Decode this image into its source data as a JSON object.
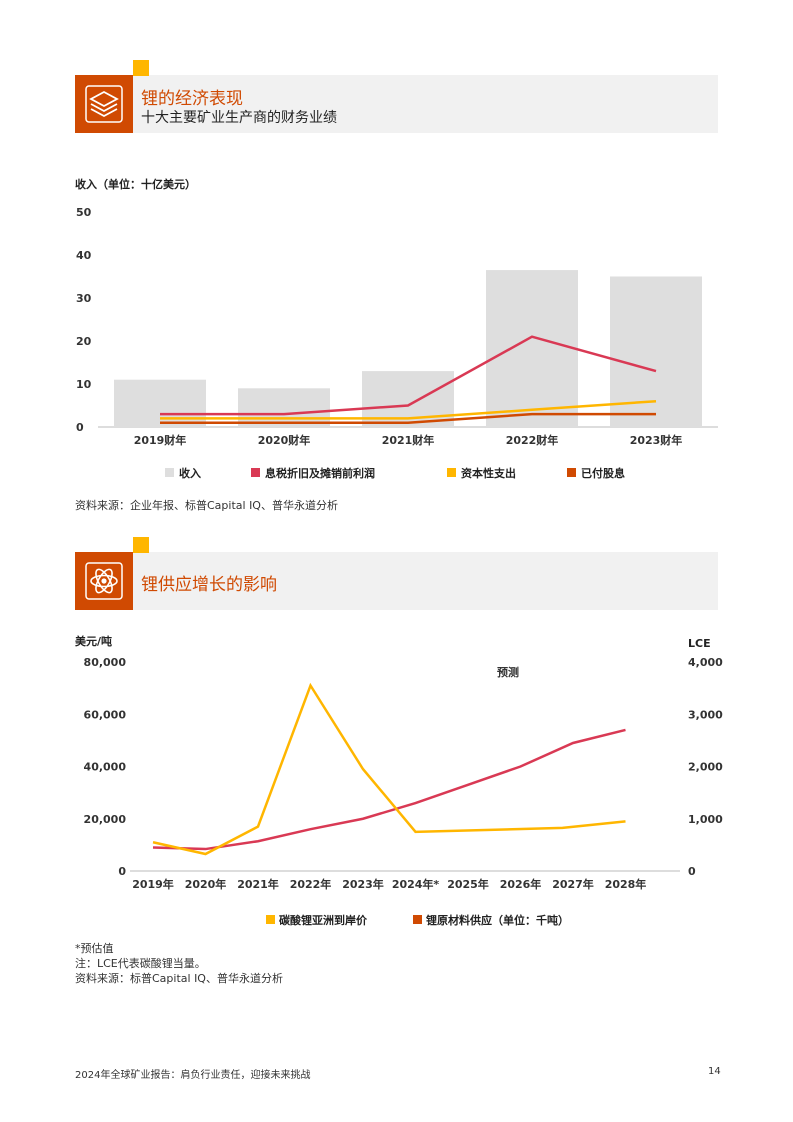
{
  "colors": {
    "accent": "#d04a02",
    "yellow": "#ffb600",
    "rose": "#d93954",
    "gray_bar": "#dedede",
    "header_bg": "#f1f1f1"
  },
  "section1": {
    "icon": "stacked-layers-icon",
    "title": "锂的经济表现",
    "subtitle": "十大主要矿业生产商的财务业绩"
  },
  "section2": {
    "icon": "atom-icon",
    "title": "锂供应增长的影响"
  },
  "chart1_label": "收入（单位：十亿美元）",
  "chart2_left_unit": "美元/吨",
  "chart2_right_unit": "LCE",
  "chart2_forecast_label": "预测",
  "chart_data": [
    {
      "type": "bar",
      "categories": [
        "2019财年",
        "2020财年",
        "2021财年",
        "2022财年",
        "2023财年"
      ],
      "ylim": [
        0,
        50
      ],
      "yticks": [
        "0",
        "10",
        "20",
        "30",
        "40",
        "50"
      ],
      "series": [
        {
          "name": "收入",
          "type": "bar",
          "color": "#dedede",
          "values": [
            11,
            9,
            13,
            36.5,
            35
          ]
        },
        {
          "name": "息税折旧及摊销前利润",
          "type": "line",
          "color": "#d93954",
          "values": [
            3,
            3,
            5,
            21,
            13
          ]
        },
        {
          "name": "资本性支出",
          "type": "line",
          "color": "#ffb600",
          "values": [
            2,
            2,
            2,
            4,
            6
          ]
        },
        {
          "name": "已付股息",
          "type": "line",
          "color": "#d04a02",
          "values": [
            1,
            1,
            1,
            3,
            3
          ]
        }
      ],
      "legend": "bottom"
    },
    {
      "type": "line",
      "categories": [
        "2019年",
        "2020年",
        "2021年",
        "2022年",
        "2023年",
        "2024年*",
        "2025年",
        "2026年",
        "2027年",
        "2028年"
      ],
      "ylim_left": [
        0,
        80000
      ],
      "ylim_right": [
        0,
        4000
      ],
      "yticks_left": [
        "0",
        "20,000",
        "40,000",
        "60,000",
        "80,000"
      ],
      "yticks_right": [
        "0",
        "1,000",
        "2,000",
        "3,000",
        "4,000"
      ],
      "series": [
        {
          "name": "碳酸锂亚洲到岸价",
          "axis": "left",
          "color": "#ffb600",
          "values": [
            11000,
            6500,
            17000,
            71000,
            39000,
            15000,
            null,
            null,
            16500,
            19000
          ],
          "x_index": [
            0,
            1,
            2,
            3,
            4,
            5,
            5.8,
            6.6,
            7.8,
            9
          ]
        },
        {
          "name": "锂原材料供应（单位：千吨）",
          "axis": "right",
          "color": "#d93954",
          "values": [
            450,
            420,
            570,
            800,
            1000,
            1300,
            1650,
            2000,
            2450,
            2700
          ]
        }
      ],
      "legend": "bottom"
    }
  ],
  "notes": [
    "*预估值",
    "注：LCE代表碳酸锂当量。",
    "资料来源：标普Capital IQ、普华永道分析"
  ],
  "source1": "资料来源：企业年报、标普Capital IQ、普华永道分析",
  "footer": {
    "text": "2024年全球矿业报告：肩负行业责任，迎接未来挑战",
    "page": "14"
  }
}
